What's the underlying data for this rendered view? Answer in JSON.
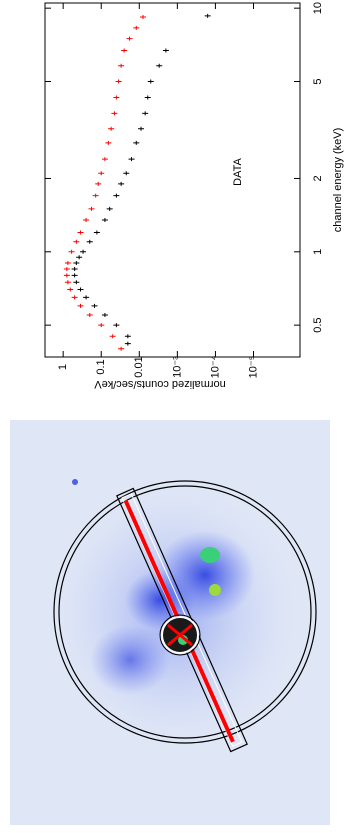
{
  "chart_data": {
    "type": "scatter",
    "title": "DATA",
    "x_label": "channel energy (keV)",
    "y_label": "normalized counts/sec/keV",
    "xscale": "log",
    "yscale": "log",
    "xlim": [
      0.37,
      10.5
    ],
    "ylim": [
      3,
      6e-07
    ],
    "xticks": [
      0.5,
      1,
      2,
      5,
      10
    ],
    "yticks": [
      1,
      0.1,
      0.01,
      {
        "value": 0.001,
        "label": "10⁻³"
      },
      {
        "value": 0.0001,
        "label": "10⁻⁴"
      },
      {
        "value": 1e-05,
        "label": "10⁻⁵"
      }
    ],
    "series": [
      {
        "color": "#000000",
        "x": [
          0.42,
          0.45,
          0.5,
          0.55,
          0.6,
          0.65,
          0.7,
          0.75,
          0.8,
          0.85,
          0.9,
          0.95,
          1.0,
          1.1,
          1.2,
          1.35,
          1.5,
          1.7,
          1.9,
          2.1,
          2.4,
          2.8,
          3.2,
          3.7,
          4.3,
          5.0,
          5.8,
          6.7,
          9.3
        ],
        "values": [
          0.02,
          0.02,
          0.04,
          0.08,
          0.15,
          0.25,
          0.35,
          0.45,
          0.5,
          0.5,
          0.45,
          0.38,
          0.3,
          0.2,
          0.13,
          0.08,
          0.06,
          0.04,
          0.03,
          0.022,
          0.016,
          0.012,
          0.009,
          0.007,
          0.006,
          0.005,
          0.003,
          0.002,
          0.00016
        ]
      },
      {
        "color": "#ff0000",
        "x": [
          0.4,
          0.45,
          0.5,
          0.55,
          0.6,
          0.65,
          0.7,
          0.75,
          0.8,
          0.85,
          0.9,
          1.0,
          1.1,
          1.2,
          1.35,
          1.5,
          1.7,
          1.9,
          2.1,
          2.4,
          2.8,
          3.2,
          3.7,
          4.3,
          5.0,
          5.8,
          6.7,
          7.5,
          8.3,
          9.2
        ],
        "values": [
          0.03,
          0.05,
          0.1,
          0.2,
          0.35,
          0.5,
          0.65,
          0.75,
          0.8,
          0.8,
          0.75,
          0.6,
          0.45,
          0.35,
          0.25,
          0.18,
          0.14,
          0.12,
          0.1,
          0.08,
          0.065,
          0.055,
          0.045,
          0.04,
          0.035,
          0.03,
          0.025,
          0.018,
          0.012,
          0.008
        ]
      }
    ]
  }
}
